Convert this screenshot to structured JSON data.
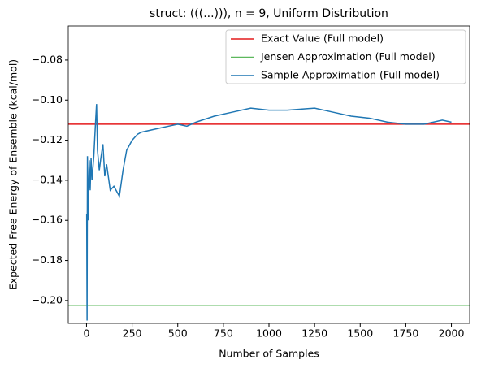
{
  "chart_data": {
    "type": "line",
    "title": "struct: (((...))), n = 9, Uniform Distribution",
    "xlabel": "Number of Samples",
    "ylabel": "Expected Free Energy of Ensemble (kcal/mol)",
    "xlim": [
      -100,
      2100
    ],
    "ylim": [
      -0.2114,
      -0.063
    ],
    "xticks": [
      0,
      250,
      500,
      750,
      1000,
      1250,
      1500,
      1750,
      2000
    ],
    "yticks": [
      {
        "value": -0.2,
        "label": "−0.20"
      },
      {
        "value": -0.18,
        "label": "−0.18"
      },
      {
        "value": -0.16,
        "label": "−0.16"
      },
      {
        "value": -0.14,
        "label": "−0.14"
      },
      {
        "value": -0.12,
        "label": "−0.12"
      },
      {
        "value": -0.1,
        "label": "−0.10"
      },
      {
        "value": -0.08,
        "label": "−0.08"
      }
    ],
    "legend": "upper right",
    "series": [
      {
        "name": "Exact Value (Full model)",
        "color": "#e41a1c",
        "value": -0.112
      },
      {
        "name": "Jensen Approximation (Full model)",
        "color": "#5cb85c",
        "value": -0.2024
      },
      {
        "name": "Sample Approximation (Full model)",
        "color": "#1f77b4",
        "x": [
          1,
          3,
          5,
          10,
          15,
          20,
          25,
          30,
          40,
          50,
          55,
          60,
          70,
          80,
          90,
          100,
          110,
          130,
          150,
          180,
          200,
          220,
          250,
          280,
          300,
          350,
          400,
          450,
          500,
          550,
          600,
          700,
          800,
          900,
          1000,
          1100,
          1250,
          1350,
          1450,
          1550,
          1650,
          1750,
          1850,
          1950,
          2000
        ],
        "values": [
          -0.157,
          -0.21,
          -0.128,
          -0.16,
          -0.13,
          -0.145,
          -0.129,
          -0.14,
          -0.128,
          -0.11,
          -0.102,
          -0.125,
          -0.135,
          -0.128,
          -0.122,
          -0.138,
          -0.132,
          -0.145,
          -0.143,
          -0.148,
          -0.135,
          -0.125,
          -0.12,
          -0.117,
          -0.116,
          -0.115,
          -0.114,
          -0.113,
          -0.112,
          -0.113,
          -0.111,
          -0.108,
          -0.106,
          -0.104,
          -0.105,
          -0.105,
          -0.104,
          -0.106,
          -0.108,
          -0.109,
          -0.111,
          -0.112,
          -0.112,
          -0.11,
          -0.111
        ]
      }
    ]
  }
}
